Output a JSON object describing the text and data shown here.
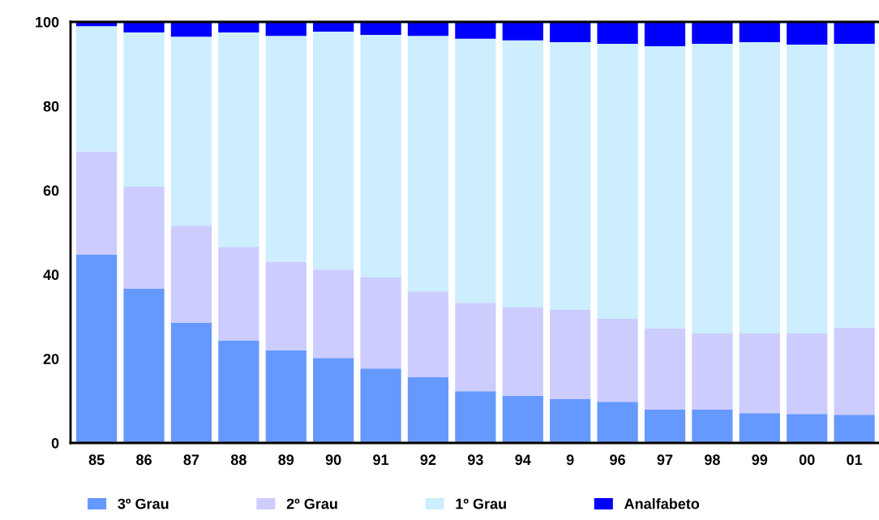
{
  "chart_data": {
    "type": "bar",
    "stacked": true,
    "categories": [
      "85",
      "86",
      "87",
      "88",
      "89",
      "90",
      "91",
      "92",
      "93",
      "94",
      "9",
      "96",
      "97",
      "98",
      "99",
      "00",
      "01"
    ],
    "series": [
      {
        "name": "3º Grau",
        "color": "#6699ff",
        "values": [
          44.7,
          36.6,
          28.5,
          24.3,
          22.0,
          20.2,
          17.7,
          15.6,
          12.3,
          11.2,
          10.4,
          9.8,
          7.9,
          7.9,
          7.1,
          6.9,
          6.7
        ]
      },
      {
        "name": "2º Grau",
        "color": "#ccccff",
        "values": [
          24.5,
          24.3,
          23.1,
          22.3,
          21.0,
          21.0,
          21.6,
          20.4,
          21.0,
          21.0,
          21.2,
          19.7,
          19.3,
          18.1,
          18.9,
          19.1,
          20.7
        ]
      },
      {
        "name": "1º Grau",
        "color": "#cceeff",
        "values": [
          29.8,
          36.6,
          44.9,
          50.9,
          53.7,
          56.5,
          57.6,
          60.7,
          62.7,
          63.4,
          63.6,
          65.3,
          67.0,
          68.8,
          69.2,
          68.6,
          67.4
        ]
      },
      {
        "name": "Analfabeto",
        "color": "#0000ff",
        "values": [
          1.0,
          2.5,
          3.5,
          2.5,
          3.3,
          2.3,
          3.1,
          3.3,
          4.0,
          4.4,
          4.8,
          5.2,
          5.8,
          5.2,
          4.8,
          5.4,
          5.2
        ]
      }
    ],
    "ylim": [
      0,
      100
    ],
    "yticks": [
      0,
      20,
      40,
      60,
      80,
      100
    ],
    "grid": false,
    "legend": "bottom"
  }
}
